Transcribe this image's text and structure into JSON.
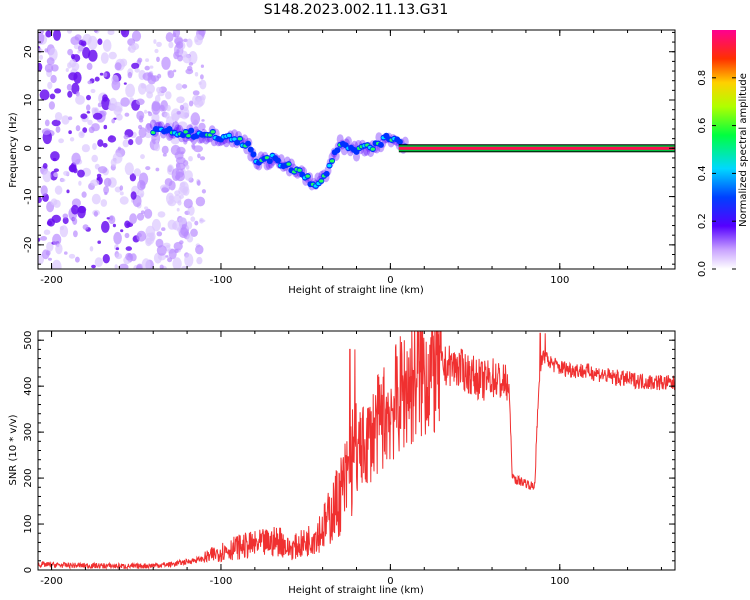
{
  "title": "S148.2023.002.11.13.G31",
  "spectrogram": {
    "xlabel": "Height of straight line (km)",
    "ylabel": "Frequency (Hz)",
    "xticks": [
      -200,
      -100,
      0,
      100
    ],
    "yticks": [
      -20,
      -10,
      0,
      10,
      20
    ],
    "xlim": [
      -208,
      168
    ],
    "ylim": [
      -25,
      24.5
    ],
    "colorbar": {
      "label": "Normalized spectral amplitude",
      "ticks": [
        0.0,
        0.2,
        0.4,
        0.6,
        0.8
      ],
      "range": [
        0,
        1
      ],
      "colormap": [
        "#ffffff",
        "#7b2ff7",
        "#0000ff",
        "#00e5ff",
        "#00ff00",
        "#ffff00",
        "#ff8c00",
        "#ff0000",
        "#ff0080"
      ]
    }
  },
  "chart_data": [
    {
      "type": "heatmap",
      "title": "S148.2023.002.11.13.G31",
      "xlabel": "Height of straight line (km)",
      "ylabel": "Frequency (Hz)",
      "xlim": [
        -208,
        168
      ],
      "ylim": [
        -25,
        24.5
      ],
      "ridge": {
        "x": [
          -140,
          -130,
          -120,
          -110,
          -100,
          -92,
          -85,
          -80,
          -75,
          -70,
          -65,
          -60,
          -55,
          -50,
          -45,
          -40,
          -35,
          -30,
          -25,
          -20,
          -15,
          -10,
          -5,
          0,
          5,
          10,
          20,
          40,
          60,
          80,
          100,
          120,
          140,
          160,
          168
        ],
        "y": [
          4,
          3.5,
          3,
          3,
          2.5,
          2,
          1,
          -2,
          -3,
          -2,
          -3,
          -4,
          -5,
          -6,
          -8,
          -6,
          -3,
          1,
          0.5,
          -0.5,
          0,
          0.5,
          1.5,
          2.5,
          1,
          0,
          0,
          0,
          0,
          0,
          0,
          0,
          0,
          0,
          0
        ]
      },
      "noise_region_x": [
        -208,
        -120
      ]
    },
    {
      "type": "line",
      "xlabel": "Height of straight line (km)",
      "ylabel": "SNR (10 * v/v)",
      "xlim": [
        -208,
        168
      ],
      "ylim": [
        0,
        520
      ],
      "xticks": [
        -200,
        -100,
        0,
        100
      ],
      "yticks": [
        0,
        100,
        200,
        300,
        400,
        500
      ],
      "color": "#f03030",
      "series": [
        {
          "x": [
            -208,
            -190,
            -170,
            -150,
            -130,
            -120,
            -110,
            -100,
            -90,
            -80,
            -70,
            -65,
            -60,
            -50,
            -40,
            -35,
            -30,
            -25,
            -22,
            -20,
            -15,
            -10,
            -5,
            0,
            10,
            20,
            30,
            35,
            40,
            45,
            50,
            55,
            60,
            65,
            70,
            72,
            75,
            80,
            82,
            85,
            88,
            90,
            95,
            100,
            110,
            120,
            130,
            140,
            150,
            160,
            168
          ],
          "y": [
            12,
            10,
            9,
            8,
            12,
            18,
            25,
            40,
            50,
            55,
            60,
            65,
            45,
            60,
            90,
            120,
            160,
            200,
            240,
            250,
            270,
            300,
            330,
            350,
            400,
            430,
            440,
            445,
            440,
            430,
            420,
            410,
            420,
            410,
            400,
            200,
            195,
            190,
            185,
            180,
            420,
            470,
            450,
            440,
            435,
            430,
            420,
            415,
            410,
            408,
            405
          ]
        }
      ]
    }
  ]
}
